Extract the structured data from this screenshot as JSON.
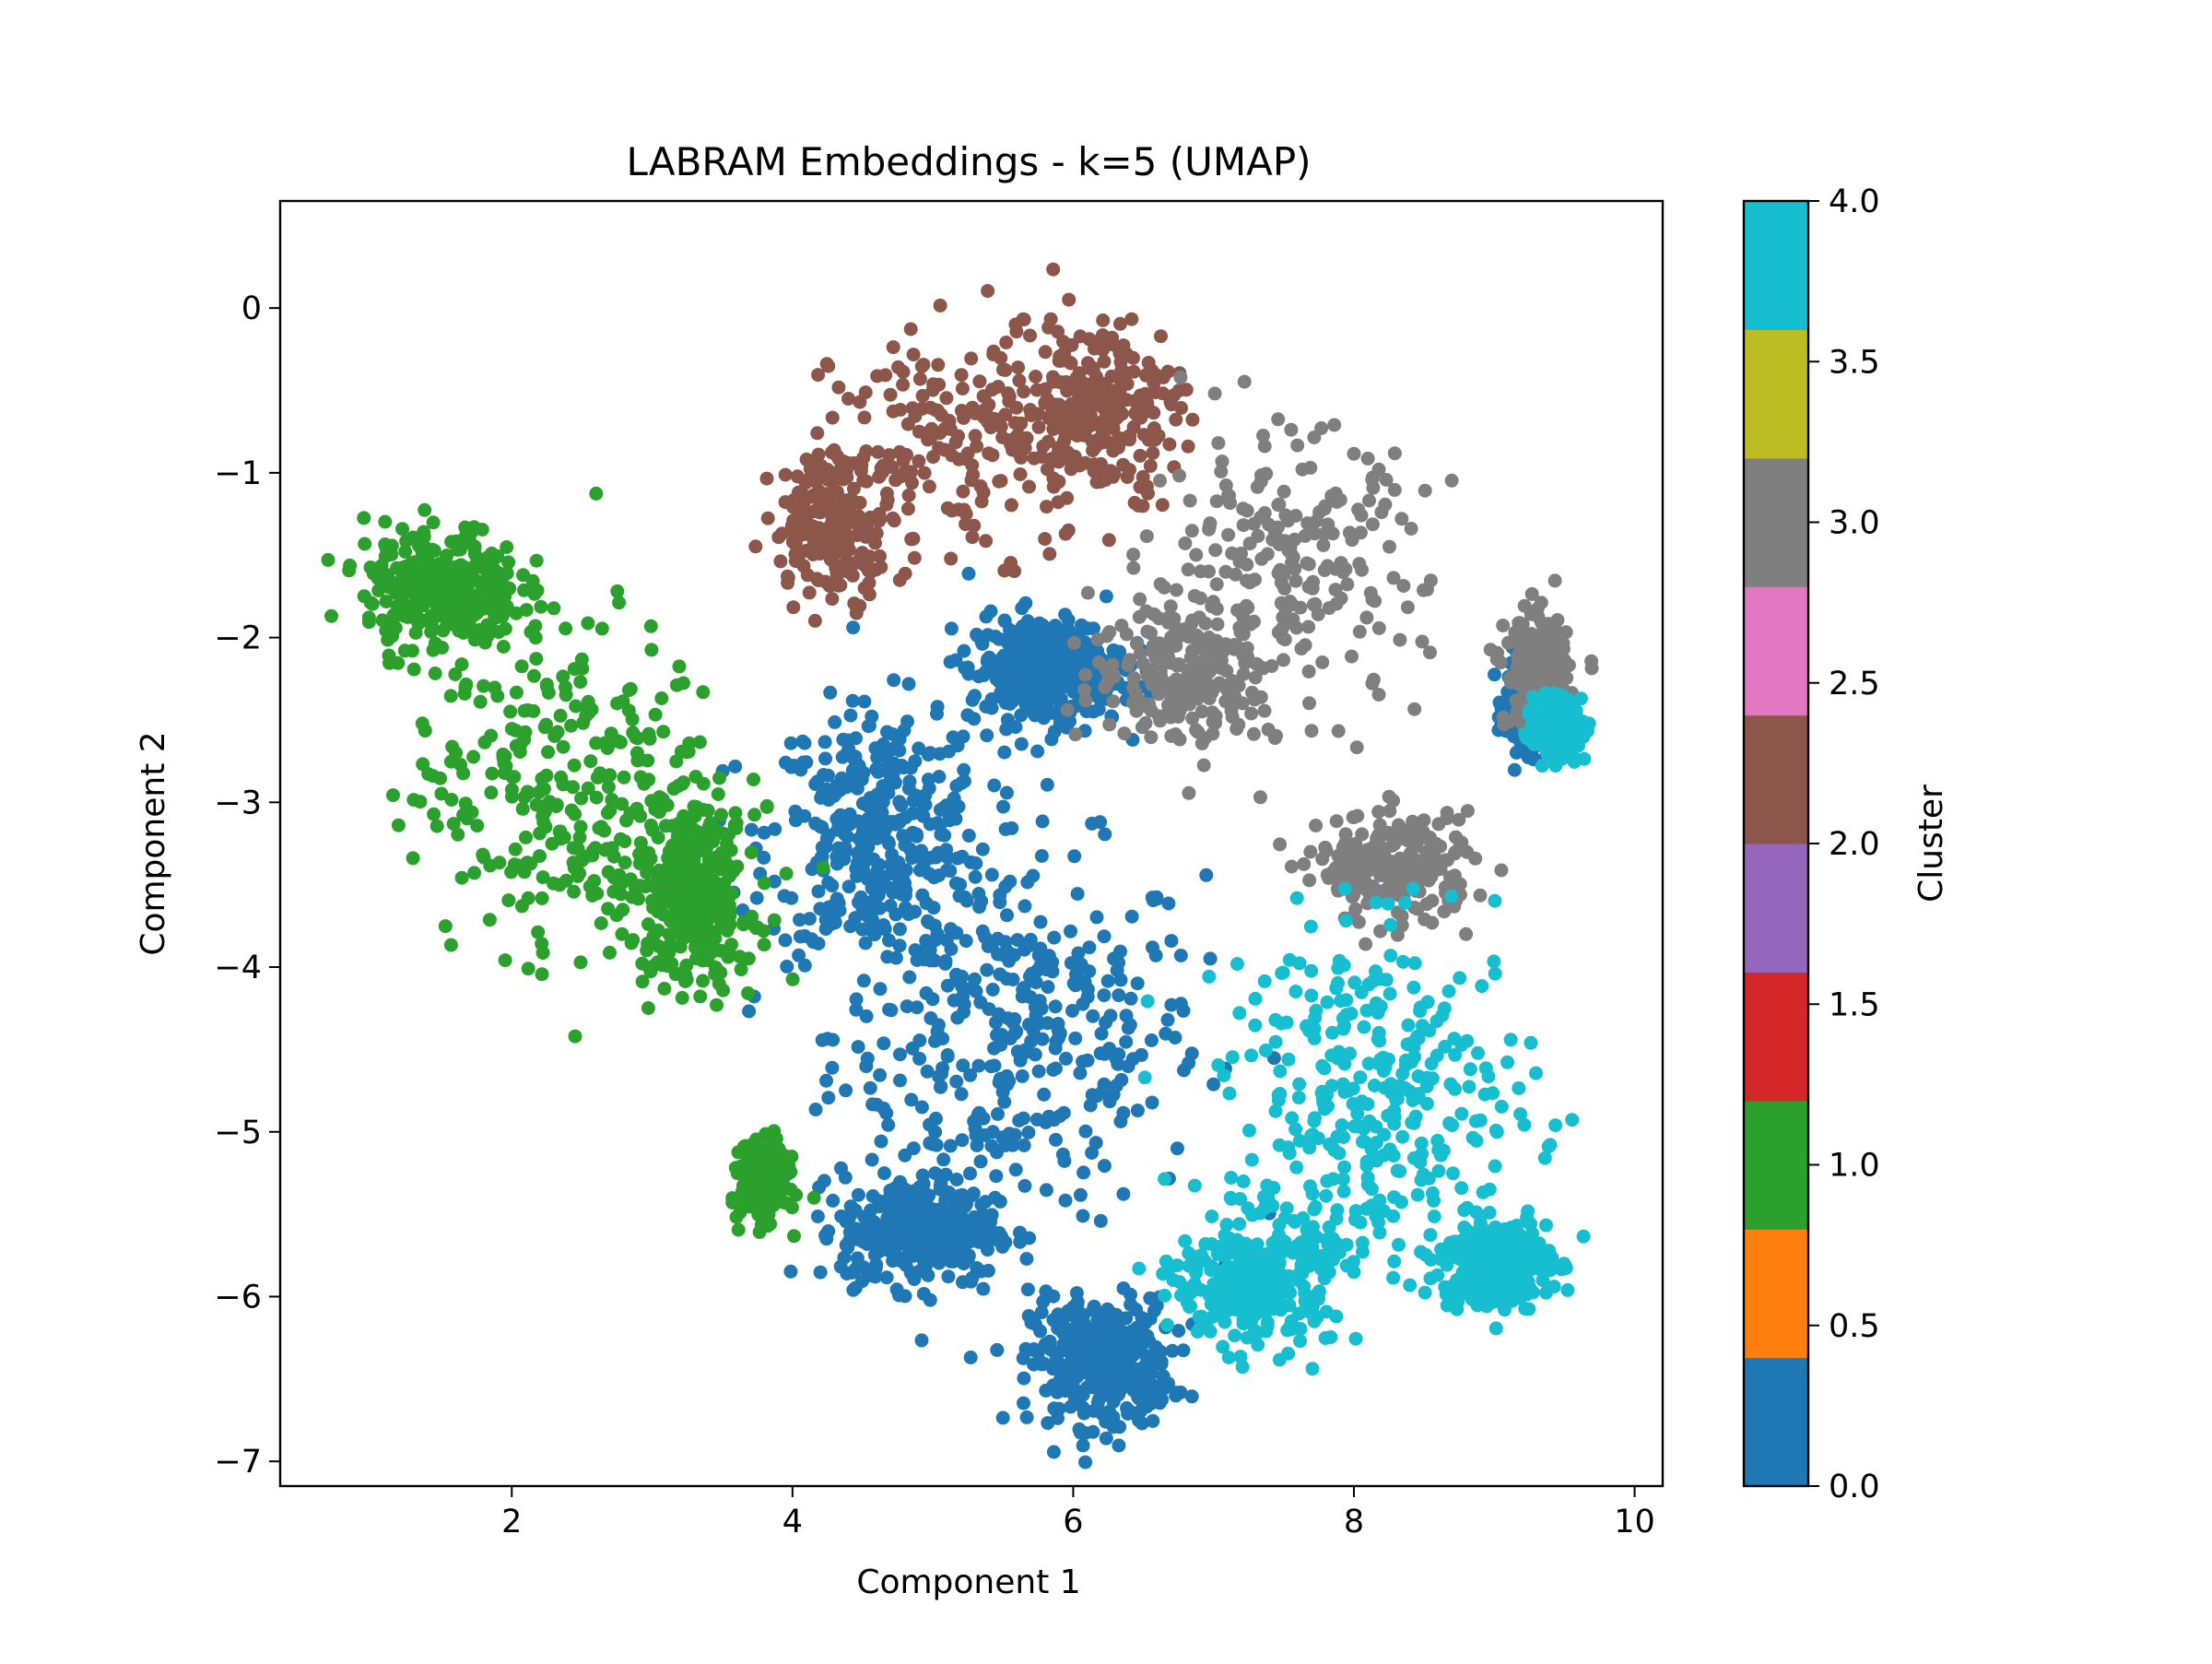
{
  "chart_data": {
    "type": "scatter",
    "title": "LABRAM Embeddings - k=5 (UMAP)",
    "xlabel": "Component 1",
    "ylabel": "Component 2",
    "xlim": [
      0.35,
      10.2
    ],
    "ylim": [
      -7.15,
      0.65
    ],
    "xticks": [
      2,
      4,
      6,
      8,
      10
    ],
    "yticks": [
      0,
      -1,
      -2,
      -3,
      -4,
      -5,
      -6,
      -7
    ],
    "grid": false,
    "legend": "none",
    "clusters": [
      {
        "label": "0",
        "color": "#1f77b4",
        "approx_points": 2200,
        "regions": [
          [
            5.6,
            -4.4,
            1.2,
            1.0
          ],
          [
            4.6,
            -3.2,
            0.7,
            0.7
          ],
          [
            6.2,
            -6.4,
            0.45,
            0.35
          ],
          [
            9.25,
            -2.4,
            0.15,
            0.25
          ],
          [
            4.9,
            -5.6,
            0.5,
            0.3
          ],
          [
            5.8,
            -2.2,
            0.5,
            0.3
          ]
        ]
      },
      {
        "label": "1",
        "color": "#2ca02c",
        "approx_points": 1200,
        "regions": [
          [
            2.4,
            -2.9,
            1.0,
            0.9
          ],
          [
            1.5,
            -1.7,
            0.5,
            0.35
          ],
          [
            3.3,
            -3.6,
            0.4,
            0.5
          ],
          [
            3.8,
            -5.3,
            0.15,
            0.2
          ]
        ]
      },
      {
        "label": "2",
        "color": "#8c564b",
        "approx_points": 650,
        "regions": [
          [
            5.3,
            -0.8,
            0.9,
            0.6
          ],
          [
            4.3,
            -1.3,
            0.4,
            0.4
          ],
          [
            6.2,
            -0.6,
            0.5,
            0.5
          ]
        ]
      },
      {
        "label": "3",
        "color": "#7f7f7f",
        "approx_points": 900,
        "regions": [
          [
            7.5,
            -1.6,
            0.9,
            0.75
          ],
          [
            6.8,
            -2.2,
            0.6,
            0.4
          ],
          [
            8.3,
            -3.4,
            0.5,
            0.3
          ],
          [
            9.3,
            -2.2,
            0.2,
            0.3
          ]
        ]
      },
      {
        "label": "4",
        "color": "#17becf",
        "approx_points": 1300,
        "regions": [
          [
            8.2,
            -4.8,
            1.0,
            0.9
          ],
          [
            9.0,
            -5.8,
            0.35,
            0.25
          ],
          [
            7.3,
            -5.9,
            0.5,
            0.35
          ],
          [
            9.45,
            -2.55,
            0.15,
            0.15
          ]
        ]
      }
    ],
    "colorbar": {
      "label": "Cluster",
      "range": [
        0.0,
        4.0
      ],
      "ticks": [
        "0.0",
        "0.5",
        "1.0",
        "1.5",
        "2.0",
        "2.5",
        "3.0",
        "3.5",
        "4.0"
      ],
      "colors": [
        "#1f77b4",
        "#ff7f0e",
        "#2ca02c",
        "#d62728",
        "#9467bd",
        "#8c564b",
        "#e377c2",
        "#7f7f7f",
        "#bcbd22",
        "#17becf"
      ]
    }
  }
}
